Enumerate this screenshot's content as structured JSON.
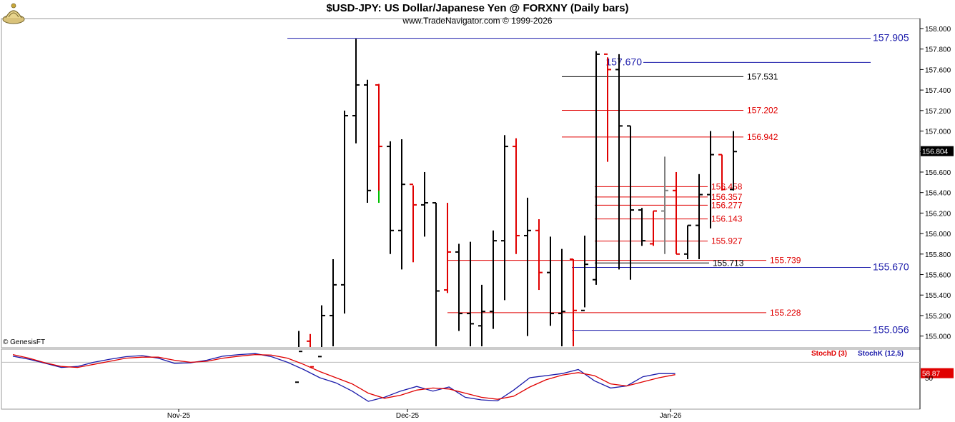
{
  "header": {
    "title": "$USD-JPY:  US Dollar/Japanese Yen @ FORXNY  (Daily bars)",
    "subtitle": "www.TradeNavigator.com © 1999-2026"
  },
  "credit": "© GenesisFT",
  "chart_data": {
    "type": "ohlc",
    "y_axis": {
      "min": 154.9,
      "max": 158.0,
      "ticks": [
        "158.000",
        "157.800",
        "157.600",
        "157.400",
        "157.200",
        "157.000",
        "156.800",
        "156.600",
        "156.400",
        "156.200",
        "156.000",
        "155.800",
        "155.600",
        "155.400",
        "155.200",
        "155.000"
      ],
      "current_price": "156.804"
    },
    "x_axis": {
      "labels": [
        {
          "text": "Nov-25",
          "bar": 0
        },
        {
          "text": "Dec-25",
          "bar": 21
        },
        {
          "text": "Jan-26",
          "bar": 45
        }
      ]
    },
    "bar_colors": {
      "up": "#000000",
      "down": "#e00000",
      "neutral": "#808080",
      "other": "#00c000"
    },
    "bars": [
      {
        "o": 154.55,
        "h": 155.05,
        "l": 154.4,
        "c": 154.85,
        "dir": "up"
      },
      {
        "o": 154.95,
        "h": 155.02,
        "l": 154.6,
        "c": 154.7,
        "dir": "down"
      },
      {
        "o": 154.8,
        "h": 155.3,
        "l": 154.75,
        "c": 155.2,
        "dir": "up"
      },
      {
        "o": 155.2,
        "h": 155.75,
        "l": 154.9,
        "c": 155.5,
        "dir": "up"
      },
      {
        "o": 155.5,
        "h": 157.2,
        "l": 155.22,
        "c": 157.15,
        "dir": "up"
      },
      {
        "o": 157.15,
        "h": 157.9,
        "l": 156.88,
        "c": 157.45,
        "dir": "up"
      },
      {
        "o": 157.45,
        "h": 157.5,
        "l": 156.3,
        "c": 156.42,
        "dir": "up"
      },
      {
        "o": 157.45,
        "h": 157.46,
        "l": 156.3,
        "c": 156.85,
        "dir": "down"
      },
      {
        "o": 156.85,
        "h": 156.9,
        "l": 155.8,
        "c": 156.03,
        "dir": "up"
      },
      {
        "o": 156.03,
        "h": 156.92,
        "l": 155.65,
        "c": 156.48,
        "dir": "up"
      },
      {
        "o": 156.48,
        "h": 156.47,
        "l": 155.72,
        "c": 156.28,
        "dir": "down"
      },
      {
        "o": 156.28,
        "h": 156.6,
        "l": 155.97,
        "c": 156.3,
        "dir": "up"
      },
      {
        "o": 156.3,
        "h": 156.3,
        "l": 154.9,
        "c": 155.44,
        "dir": "up"
      },
      {
        "o": 155.45,
        "h": 156.3,
        "l": 155.42,
        "c": 155.82,
        "dir": "down"
      },
      {
        "o": 155.82,
        "h": 155.9,
        "l": 155.05,
        "c": 155.22,
        "dir": "up"
      },
      {
        "o": 155.22,
        "h": 155.92,
        "l": 154.9,
        "c": 155.12,
        "dir": "up"
      },
      {
        "o": 155.1,
        "h": 155.5,
        "l": 154.9,
        "c": 155.24,
        "dir": "up"
      },
      {
        "o": 155.24,
        "h": 156.03,
        "l": 155.07,
        "c": 155.93,
        "dir": "up"
      },
      {
        "o": 155.93,
        "h": 156.96,
        "l": 155.35,
        "c": 156.85,
        "dir": "up"
      },
      {
        "o": 156.85,
        "h": 156.93,
        "l": 155.8,
        "c": 155.98,
        "dir": "down"
      },
      {
        "o": 155.98,
        "h": 156.35,
        "l": 155.0,
        "c": 156.03,
        "dir": "up"
      },
      {
        "o": 156.03,
        "h": 156.14,
        "l": 155.45,
        "c": 155.62,
        "dir": "down"
      },
      {
        "o": 155.62,
        "h": 155.97,
        "l": 155.1,
        "c": 155.22,
        "dir": "up"
      },
      {
        "o": 155.22,
        "h": 155.85,
        "l": 154.9,
        "c": 155.24,
        "dir": "up"
      },
      {
        "o": 155.75,
        "h": 155.75,
        "l": 154.9,
        "c": 155.25,
        "dir": "down"
      },
      {
        "o": 155.25,
        "h": 155.98,
        "l": 155.28,
        "c": 155.7,
        "dir": "up"
      },
      {
        "o": 155.55,
        "h": 157.78,
        "l": 155.5,
        "c": 157.75,
        "dir": "up"
      },
      {
        "o": 157.75,
        "h": 157.72,
        "l": 156.7,
        "c": 157.6,
        "dir": "down"
      },
      {
        "o": 157.6,
        "h": 157.75,
        "l": 155.65,
        "c": 157.05,
        "dir": "up"
      },
      {
        "o": 157.05,
        "h": 157.05,
        "l": 155.55,
        "c": 156.23,
        "dir": "up"
      },
      {
        "o": 156.23,
        "h": 156.25,
        "l": 155.88,
        "c": 155.93,
        "dir": "up"
      },
      {
        "o": 155.9,
        "h": 156.22,
        "l": 155.88,
        "c": 156.22,
        "dir": "down"
      },
      {
        "o": 156.22,
        "h": 156.75,
        "l": 155.8,
        "c": 156.42,
        "dir": "neutral"
      },
      {
        "o": 156.42,
        "h": 156.6,
        "l": 155.8,
        "c": 155.8,
        "dir": "down"
      },
      {
        "o": 155.8,
        "h": 156.08,
        "l": 155.75,
        "c": 156.08,
        "dir": "up"
      },
      {
        "o": 156.08,
        "h": 156.58,
        "l": 155.75,
        "c": 156.38,
        "dir": "up"
      },
      {
        "o": 156.38,
        "h": 157.0,
        "l": 156.05,
        "c": 156.77,
        "dir": "up"
      },
      {
        "o": 156.77,
        "h": 156.77,
        "l": 156.42,
        "c": 156.43,
        "dir": "down"
      },
      {
        "o": 156.43,
        "h": 157.0,
        "l": 156.42,
        "c": 156.8,
        "dir": "up"
      }
    ],
    "levels": [
      {
        "value": 157.905,
        "label": "157.905",
        "color": "#1a1aaa",
        "style": "axis"
      },
      {
        "value": 157.67,
        "label": "157.670",
        "color": "#1a1aaa",
        "style": "left"
      },
      {
        "value": 157.531,
        "label": "157.531",
        "color": "#000000",
        "style": "mid"
      },
      {
        "value": 157.202,
        "label": "157.202",
        "color": "#e00000",
        "style": "mid"
      },
      {
        "value": 156.942,
        "label": "156.942",
        "color": "#e00000",
        "style": "mid"
      },
      {
        "value": 156.458,
        "label": "156.458",
        "color": "#e00000",
        "style": "short"
      },
      {
        "value": 156.357,
        "label": "156.357",
        "color": "#e00000",
        "style": "short"
      },
      {
        "value": 156.277,
        "label": "156.277",
        "color": "#e00000",
        "style": "short"
      },
      {
        "value": 156.143,
        "label": "156.143",
        "color": "#e00000",
        "style": "short"
      },
      {
        "value": 155.927,
        "label": "155.927",
        "color": "#e00000",
        "style": "short"
      },
      {
        "value": 155.739,
        "label": "155.739",
        "color": "#e00000",
        "style": "long"
      },
      {
        "value": 155.713,
        "label": "155.713",
        "color": "#000000",
        "style": "short"
      },
      {
        "value": 155.67,
        "label": "155.670",
        "color": "#1a1aaa",
        "style": "axis"
      },
      {
        "value": 155.228,
        "label": "155.228",
        "color": "#e00000",
        "style": "long"
      },
      {
        "value": 155.056,
        "label": "155.056",
        "color": "#1a1aaa",
        "style": "axis"
      }
    ],
    "stochastic": {
      "legend": [
        {
          "name": "StochD (3)",
          "color": "#e00000"
        },
        {
          "name": "StochK (12,5)",
          "color": "#1a1aaa"
        }
      ],
      "axis_labels": [
        "50"
      ],
      "ylim": [
        0,
        100
      ],
      "current_value": "58.87",
      "k": [
        92,
        86,
        78,
        70,
        72,
        80,
        86,
        91,
        93,
        88,
        78,
        79,
        84,
        92,
        95,
        97,
        91,
        80,
        66,
        50,
        40,
        24,
        4,
        12,
        24,
        33,
        24,
        32,
        12,
        7,
        5,
        26,
        50,
        54,
        58,
        66,
        44,
        30,
        34,
        52,
        58,
        58
      ],
      "d": [
        95,
        88,
        79,
        72,
        70,
        76,
        82,
        88,
        90,
        90,
        84,
        80,
        82,
        88,
        92,
        95,
        94,
        88,
        76,
        62,
        50,
        38,
        20,
        10,
        16,
        26,
        30,
        28,
        20,
        12,
        8,
        14,
        32,
        46,
        55,
        60,
        54,
        38,
        34,
        42,
        50,
        56
      ]
    }
  }
}
